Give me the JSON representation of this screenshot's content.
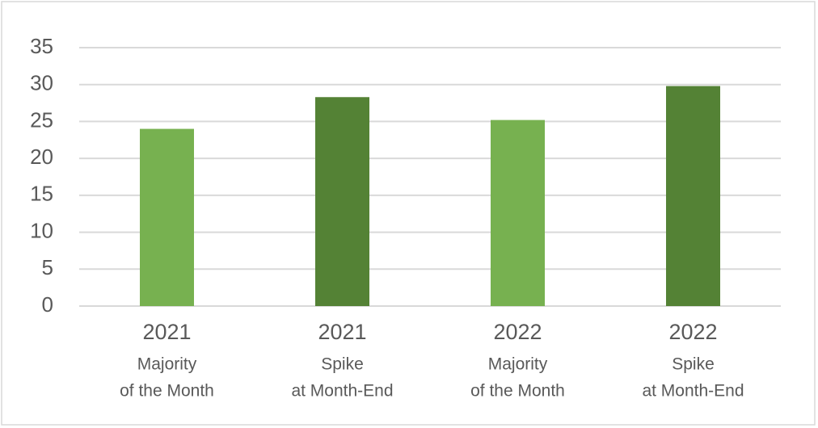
{
  "chart_data": {
    "type": "bar",
    "categories": [
      "2021",
      "2021",
      "2022",
      "2022"
    ],
    "category_sublabels": [
      [
        "Majority",
        "of the Month"
      ],
      [
        "Spike",
        "at Month-End"
      ],
      [
        "Majority",
        "of the Month"
      ],
      [
        "Spike",
        "at Month-End"
      ]
    ],
    "values": [
      24,
      28.3,
      25.2,
      29.8
    ],
    "colors": [
      "#77b150",
      "#548235",
      "#77b150",
      "#548235"
    ],
    "ylim": [
      0,
      35
    ],
    "yticks": [
      0,
      5,
      10,
      15,
      20,
      25,
      30,
      35
    ],
    "grid": true
  }
}
